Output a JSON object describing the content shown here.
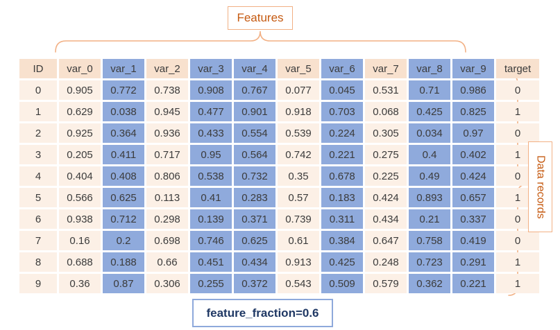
{
  "figure": {
    "features_label": "Features",
    "data_records_label": "Data records",
    "caption": "feature_fraction=0.6"
  },
  "table": {
    "columns": [
      "ID",
      "var_0",
      "var_1",
      "var_2",
      "var_3",
      "var_4",
      "var_5",
      "var_6",
      "var_7",
      "var_8",
      "var_9",
      "target"
    ],
    "highlighted_columns": [
      "var_1",
      "var_3",
      "var_4",
      "var_6",
      "var_8",
      "var_9"
    ],
    "rows": [
      [
        "0",
        "0.905",
        "0.772",
        "0.738",
        "0.908",
        "0.767",
        "0.077",
        "0.045",
        "0.531",
        "0.71",
        "0.986",
        "0"
      ],
      [
        "1",
        "0.629",
        "0.038",
        "0.945",
        "0.477",
        "0.901",
        "0.918",
        "0.703",
        "0.068",
        "0.425",
        "0.825",
        "1"
      ],
      [
        "2",
        "0.925",
        "0.364",
        "0.936",
        "0.433",
        "0.554",
        "0.539",
        "0.224",
        "0.305",
        "0.034",
        "0.97",
        "0"
      ],
      [
        "3",
        "0.205",
        "0.411",
        "0.717",
        "0.95",
        "0.564",
        "0.742",
        "0.221",
        "0.275",
        "0.4",
        "0.402",
        "1"
      ],
      [
        "4",
        "0.404",
        "0.408",
        "0.806",
        "0.538",
        "0.732",
        "0.35",
        "0.678",
        "0.225",
        "0.49",
        "0.424",
        "0"
      ],
      [
        "5",
        "0.566",
        "0.625",
        "0.113",
        "0.41",
        "0.283",
        "0.57",
        "0.183",
        "0.424",
        "0.893",
        "0.657",
        "1"
      ],
      [
        "6",
        "0.938",
        "0.712",
        "0.298",
        "0.139",
        "0.371",
        "0.739",
        "0.311",
        "0.434",
        "0.21",
        "0.337",
        "0"
      ],
      [
        "7",
        "0.16",
        "0.2",
        "0.698",
        "0.746",
        "0.625",
        "0.61",
        "0.384",
        "0.647",
        "0.758",
        "0.419",
        "0"
      ],
      [
        "8",
        "0.688",
        "0.188",
        "0.66",
        "0.451",
        "0.434",
        "0.913",
        "0.425",
        "0.248",
        "0.723",
        "0.291",
        "1"
      ],
      [
        "9",
        "0.36",
        "0.87",
        "0.306",
        "0.255",
        "0.372",
        "0.543",
        "0.509",
        "0.579",
        "0.362",
        "0.221",
        "1"
      ]
    ]
  },
  "colors": {
    "highlight_blue": "#8FAADC",
    "header_peach": "#F8E1CE",
    "row_peach": "#FCF0E6",
    "label_orange": "#C55A11",
    "brace_orange": "#F2B084",
    "caption_navy": "#1F3864",
    "caption_border_blue": "#8EA9DB"
  }
}
